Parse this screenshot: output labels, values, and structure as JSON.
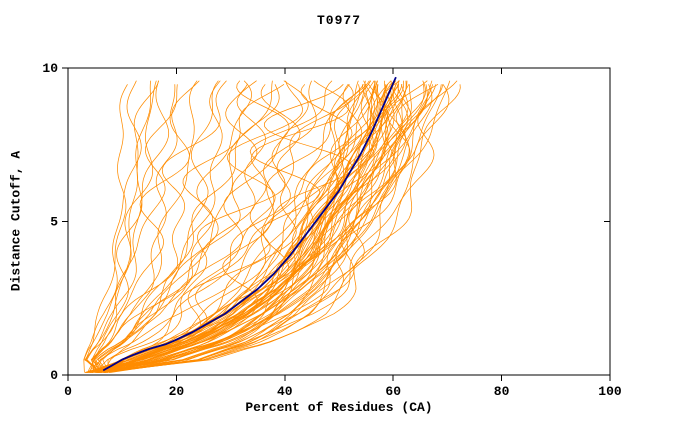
{
  "chart": {
    "title": "T0977",
    "xlabel": "Percent of Residues (CA)",
    "ylabel": "Distance Cutoff, A"
  },
  "chart_data": {
    "type": "line",
    "title": "T0977",
    "xlabel": "Percent of Residues (CA)",
    "ylabel": "Distance Cutoff, A",
    "xlim": [
      0,
      100
    ],
    "ylim": [
      0,
      10
    ],
    "xticks": [
      0,
      20,
      40,
      60,
      80,
      100
    ],
    "yticks": [
      0,
      5,
      10
    ],
    "grid": false,
    "legend": "none",
    "colors": {
      "ensemble": "#FF8C00",
      "highlight": "#00008B",
      "axis": "#000000",
      "background": "#FFFFFF"
    },
    "highlight_curve": {
      "color_role": "highlight",
      "points_xy": [
        [
          6.5,
          0.15
        ],
        [
          8,
          0.3
        ],
        [
          10,
          0.5
        ],
        [
          12,
          0.65
        ],
        [
          15,
          0.85
        ],
        [
          18,
          1.0
        ],
        [
          20,
          1.15
        ],
        [
          23,
          1.4
        ],
        [
          26,
          1.7
        ],
        [
          29,
          2.0
        ],
        [
          32,
          2.4
        ],
        [
          35,
          2.8
        ],
        [
          38,
          3.3
        ],
        [
          41,
          3.9
        ],
        [
          44,
          4.6
        ],
        [
          47,
          5.3
        ],
        [
          50,
          6.0
        ],
        [
          52,
          6.6
        ],
        [
          54,
          7.2
        ],
        [
          56,
          7.9
        ],
        [
          58,
          8.7
        ],
        [
          59.5,
          9.3
        ],
        [
          60.5,
          9.7
        ]
      ]
    },
    "ensemble_curves": {
      "color_role": "ensemble",
      "count": 90,
      "curves_start_x_range": [
        3,
        8
      ],
      "curves_top_y": 9.7,
      "curves_top_x_range": [
        10,
        71
      ],
      "scales": [
        0.16,
        0.19,
        0.21,
        0.23,
        0.25,
        0.27,
        0.3,
        0.33,
        0.36,
        0.39,
        0.42,
        0.45,
        0.48,
        0.51,
        0.54,
        0.56,
        0.58,
        0.6,
        0.62,
        0.64,
        0.66,
        0.68,
        0.7,
        0.72,
        0.74,
        0.76,
        0.78,
        0.8,
        0.82,
        0.84,
        0.86,
        0.87,
        0.88,
        0.89,
        0.9,
        0.9,
        0.91,
        0.91,
        0.92,
        0.92,
        0.93,
        0.93,
        0.94,
        0.94,
        0.95,
        0.95,
        0.95,
        0.96,
        0.96,
        0.96,
        0.97,
        0.97,
        0.97,
        0.98,
        0.98,
        0.98,
        0.99,
        0.99,
        1.0,
        1.0,
        1.0,
        1.01,
        1.01,
        1.02,
        1.02,
        1.02,
        1.03,
        1.03,
        1.04,
        1.04,
        1.05,
        1.05,
        1.06,
        1.06,
        1.07,
        1.07,
        1.08,
        1.08,
        1.09,
        1.1,
        1.1,
        1.11,
        1.12,
        1.12,
        1.13,
        1.14,
        1.15,
        1.16,
        1.17,
        1.18
      ]
    }
  }
}
